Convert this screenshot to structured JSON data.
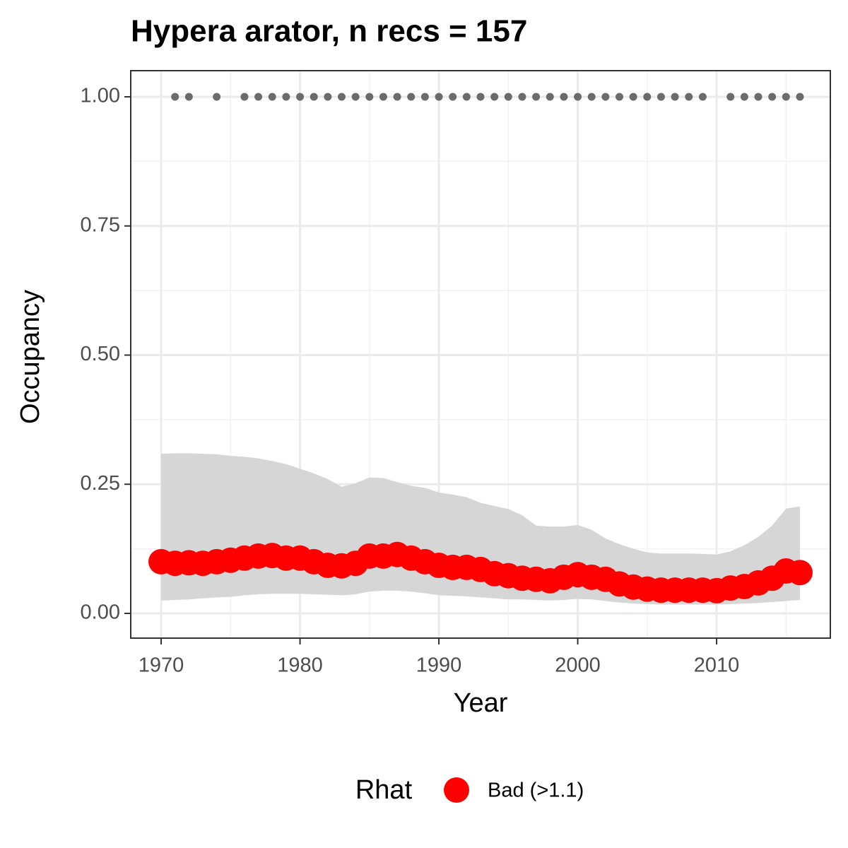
{
  "chart_data": {
    "type": "line",
    "title": "Hypera arator, n recs = 157",
    "x_label": "Year",
    "y_label": "Occupancy",
    "legend_title": "Rhat",
    "x": [
      1970,
      1971,
      1972,
      1973,
      1974,
      1975,
      1976,
      1977,
      1978,
      1979,
      1980,
      1981,
      1982,
      1983,
      1984,
      1985,
      1986,
      1987,
      1988,
      1989,
      1990,
      1991,
      1992,
      1993,
      1994,
      1995,
      1996,
      1997,
      1998,
      1999,
      2000,
      2001,
      2002,
      2003,
      2004,
      2005,
      2006,
      2007,
      2008,
      2009,
      2010,
      2011,
      2012,
      2013,
      2014,
      2015,
      2016
    ],
    "series": [
      {
        "name": "Bad (>1.1)",
        "color": "#ff0000",
        "values": [
          0.1,
          0.097,
          0.098,
          0.097,
          0.1,
          0.103,
          0.107,
          0.111,
          0.112,
          0.107,
          0.107,
          0.1,
          0.093,
          0.092,
          0.097,
          0.111,
          0.111,
          0.114,
          0.107,
          0.1,
          0.093,
          0.089,
          0.089,
          0.085,
          0.077,
          0.073,
          0.068,
          0.066,
          0.063,
          0.07,
          0.075,
          0.07,
          0.066,
          0.057,
          0.051,
          0.047,
          0.045,
          0.045,
          0.045,
          0.045,
          0.044,
          0.049,
          0.052,
          0.059,
          0.068,
          0.082,
          0.079
        ]
      }
    ],
    "band": {
      "color": "#d6d6d6",
      "lower": [
        0.025,
        0.026,
        0.027,
        0.029,
        0.031,
        0.032,
        0.035,
        0.037,
        0.038,
        0.038,
        0.038,
        0.037,
        0.036,
        0.035,
        0.037,
        0.042,
        0.044,
        0.044,
        0.042,
        0.039,
        0.035,
        0.034,
        0.033,
        0.031,
        0.029,
        0.027,
        0.027,
        0.026,
        0.025,
        0.026,
        0.028,
        0.027,
        0.024,
        0.021,
        0.019,
        0.018,
        0.017,
        0.017,
        0.017,
        0.017,
        0.017,
        0.018,
        0.019,
        0.02,
        0.022,
        0.024,
        0.026
      ],
      "upper": [
        0.309,
        0.31,
        0.31,
        0.309,
        0.308,
        0.305,
        0.303,
        0.3,
        0.295,
        0.289,
        0.28,
        0.271,
        0.26,
        0.245,
        0.252,
        0.263,
        0.262,
        0.254,
        0.247,
        0.243,
        0.234,
        0.23,
        0.225,
        0.214,
        0.208,
        0.202,
        0.19,
        0.17,
        0.168,
        0.168,
        0.171,
        0.162,
        0.145,
        0.134,
        0.125,
        0.118,
        0.116,
        0.116,
        0.116,
        0.115,
        0.114,
        0.12,
        0.132,
        0.148,
        0.17,
        0.203,
        0.207
      ]
    },
    "records": {
      "color": "#6b6b6b",
      "x": [
        1971,
        1972,
        1974,
        1976,
        1977,
        1978,
        1979,
        1980,
        1981,
        1982,
        1983,
        1984,
        1985,
        1986,
        1987,
        1988,
        1989,
        1990,
        1991,
        1992,
        1993,
        1994,
        1995,
        1996,
        1997,
        1998,
        1999,
        2000,
        2001,
        2002,
        2003,
        2004,
        2005,
        2006,
        2007,
        2008,
        2009,
        2011,
        2012,
        2013,
        2014,
        2015,
        2016
      ],
      "values": [
        1,
        1,
        1,
        1,
        1,
        1,
        1,
        1,
        1,
        1,
        1,
        1,
        1,
        1,
        1,
        1,
        1,
        1,
        1,
        1,
        1,
        1,
        1,
        1,
        1,
        1,
        1,
        1,
        1,
        1,
        1,
        1,
        1,
        1,
        1,
        1,
        1,
        1,
        1,
        1,
        1,
        1,
        1
      ]
    },
    "xlim": [
      1967.81,
      2018.19
    ],
    "ylim": [
      -0.0479,
      1.0506
    ],
    "xticks": [
      1970,
      1980,
      1990,
      2000,
      2010
    ],
    "yticks": [
      {
        "value": 0,
        "label": "0.00"
      },
      {
        "value": 0.25,
        "label": "0.25"
      },
      {
        "value": 0.5,
        "label": "0.50"
      },
      {
        "value": 0.75,
        "label": "0.75"
      },
      {
        "value": 1,
        "label": "1.00"
      }
    ],
    "x_minor_ticks": [
      1975,
      1985,
      1995,
      2005,
      2015
    ],
    "y_minor_ticks": [
      0.125,
      0.375,
      0.625,
      0.875
    ],
    "grid": true
  }
}
